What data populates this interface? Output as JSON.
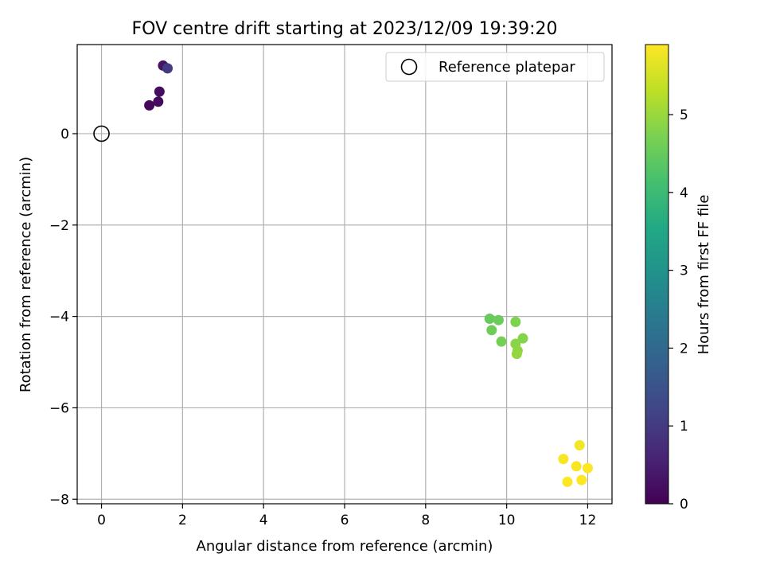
{
  "chart_data": {
    "type": "scatter",
    "title": "FOV centre drift starting at 2023/12/09 19:39:20",
    "xlabel": "Angular distance from reference (arcmin)",
    "ylabel": "Rotation from reference (arcmin)",
    "xlim": [
      -0.6,
      12.6
    ],
    "ylim": [
      -8.1,
      1.95
    ],
    "xticks": [
      0,
      2,
      4,
      6,
      8,
      10,
      12
    ],
    "yticks": [
      0,
      -2,
      -4,
      -6,
      -8
    ],
    "xtick_labels": [
      "0",
      "2",
      "4",
      "6",
      "8",
      "10",
      "12"
    ],
    "ytick_labels": [
      "0",
      "−2",
      "−4",
      "−6",
      "−8"
    ],
    "grid": true,
    "legend": {
      "placement": "top-right",
      "entries": [
        "Reference platepar"
      ]
    },
    "reference_point": {
      "x": 0,
      "y": 0,
      "label": "Reference platepar"
    },
    "colorbar": {
      "label": "Hours from first FF file",
      "range": [
        0,
        5.9
      ],
      "ticks": [
        0,
        1,
        2,
        3,
        4,
        5
      ],
      "tick_labels": [
        "0",
        "1",
        "2",
        "3",
        "4",
        "5"
      ],
      "colormap": "viridis"
    },
    "points": [
      {
        "x": 1.18,
        "y": 0.62,
        "hours": 0.1
      },
      {
        "x": 1.4,
        "y": 0.7,
        "hours": 0.15
      },
      {
        "x": 1.43,
        "y": 0.92,
        "hours": 0.2
      },
      {
        "x": 1.52,
        "y": 1.49,
        "hours": 0.3
      },
      {
        "x": 1.63,
        "y": 1.43,
        "hours": 1.0
      },
      {
        "x": 9.58,
        "y": -4.05,
        "hours": 4.5
      },
      {
        "x": 9.8,
        "y": -4.08,
        "hours": 4.55
      },
      {
        "x": 9.63,
        "y": -4.3,
        "hours": 4.6
      },
      {
        "x": 9.87,
        "y": -4.55,
        "hours": 4.65
      },
      {
        "x": 10.22,
        "y": -4.12,
        "hours": 4.75
      },
      {
        "x": 10.4,
        "y": -4.48,
        "hours": 4.8
      },
      {
        "x": 10.22,
        "y": -4.6,
        "hours": 4.85
      },
      {
        "x": 10.27,
        "y": -4.75,
        "hours": 4.9
      },
      {
        "x": 10.25,
        "y": -4.82,
        "hours": 4.95
      },
      {
        "x": 11.8,
        "y": -6.82,
        "hours": 5.8
      },
      {
        "x": 11.4,
        "y": -7.12,
        "hours": 5.85
      },
      {
        "x": 11.72,
        "y": -7.28,
        "hours": 5.85
      },
      {
        "x": 12.0,
        "y": -7.32,
        "hours": 5.9
      },
      {
        "x": 11.85,
        "y": -7.58,
        "hours": 5.9
      },
      {
        "x": 11.5,
        "y": -7.62,
        "hours": 5.9
      }
    ]
  }
}
